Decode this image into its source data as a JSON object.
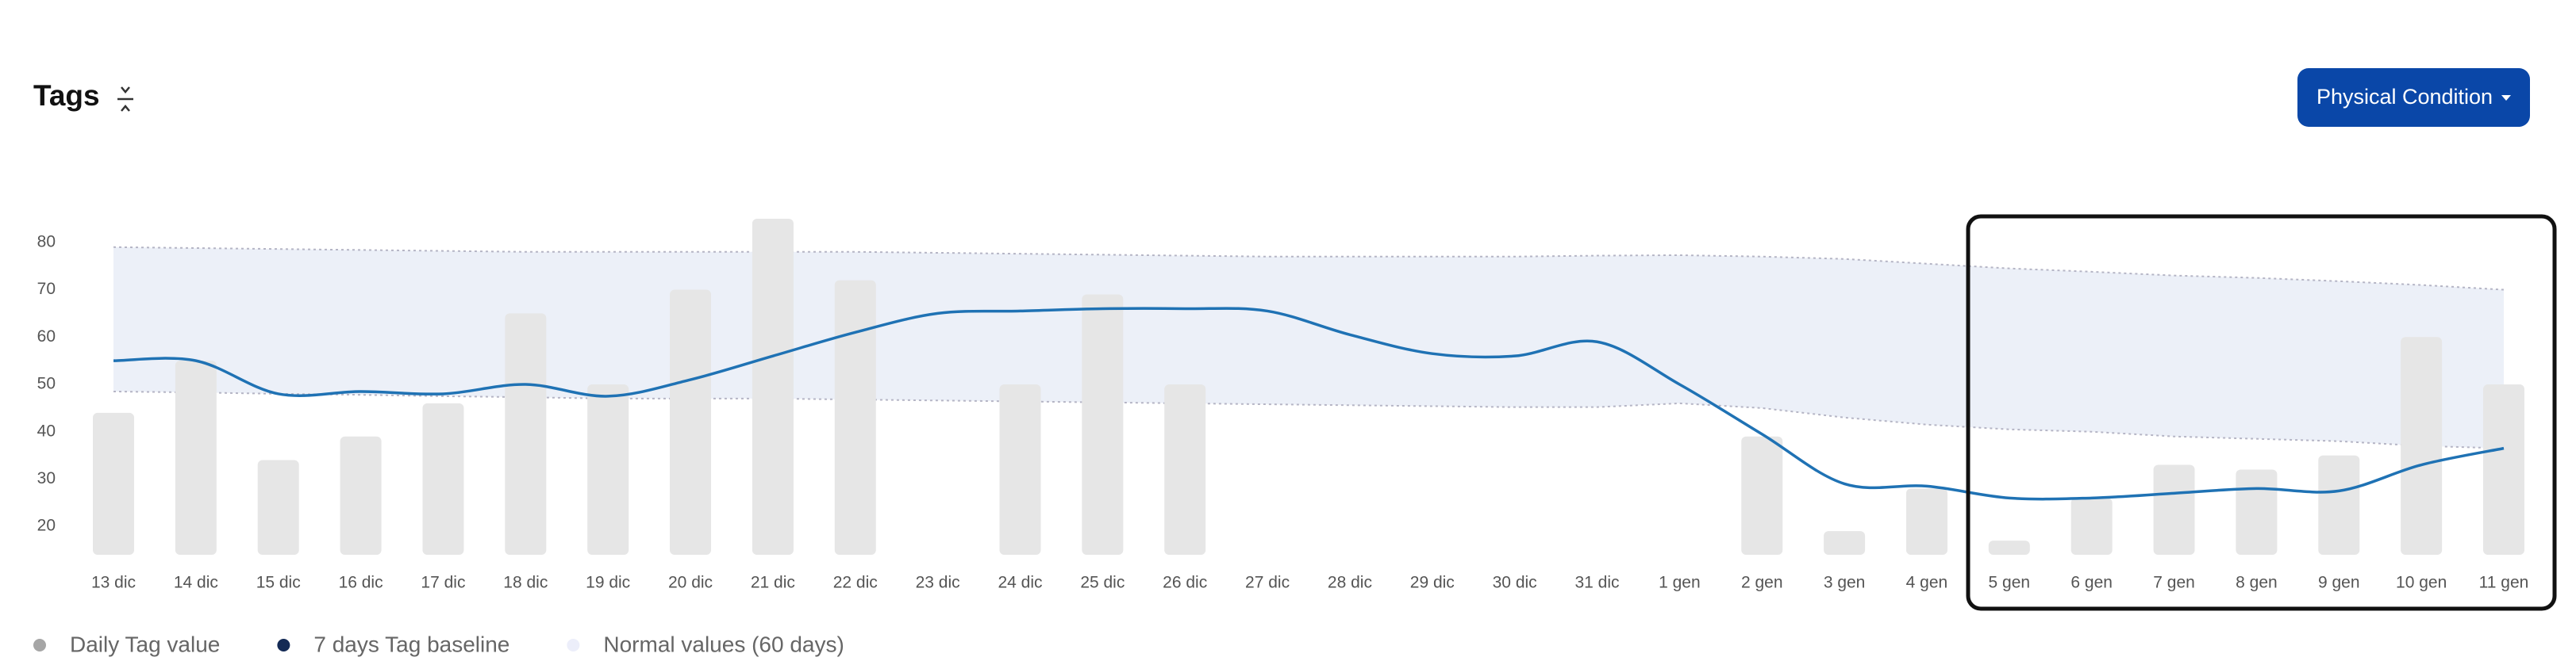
{
  "header": {
    "title": "Tags",
    "button": "Physical Condition"
  },
  "chart_data": {
    "type": "bar",
    "categories": [
      "13 dic",
      "14 dic",
      "15 dic",
      "16 dic",
      "17 dic",
      "18 dic",
      "19 dic",
      "20 dic",
      "21 dic",
      "22 dic",
      "23 dic",
      "24 dic",
      "25 dic",
      "26 dic",
      "27 dic",
      "28 dic",
      "29 dic",
      "30 dic",
      "31 dic",
      "1 gen",
      "2 gen",
      "3 gen",
      "4 gen",
      "5 gen",
      "6 gen",
      "7 gen",
      "8 gen",
      "9 gen",
      "10 gen",
      "11 gen"
    ],
    "series": [
      {
        "name": "Daily Tag value",
        "type": "bar",
        "color": "#e6e6e6",
        "legend_color": "#a6a6a6",
        "values": [
          44,
          55,
          34,
          39,
          46,
          65,
          50,
          70,
          85,
          72,
          null,
          50,
          69,
          50,
          null,
          null,
          null,
          null,
          null,
          null,
          39,
          19,
          28,
          17,
          26,
          33,
          32,
          35,
          60,
          50
        ]
      },
      {
        "name": "7 days Tag baseline",
        "type": "line",
        "color": "#1f72b4",
        "legend_color": "#142a55",
        "values": [
          55,
          55,
          48,
          48.5,
          48,
          50,
          47.5,
          51,
          56,
          61,
          65,
          65.5,
          66,
          66,
          65.5,
          60.5,
          56.5,
          56,
          59,
          50,
          39.5,
          29,
          28.5,
          26,
          26,
          27,
          28,
          27.5,
          33,
          36.5
        ]
      },
      {
        "name": "Normal values (60 days)",
        "type": "band",
        "color": "#e9edf7",
        "legend_color": "#eceefa",
        "lower": [
          48.5,
          48.3,
          48,
          47.8,
          47.5,
          47.3,
          47,
          47,
          47,
          46.8,
          46.6,
          46.4,
          46.2,
          46,
          45.8,
          45.6,
          45.4,
          45.2,
          45.2,
          46,
          45,
          43,
          41.5,
          40.5,
          40,
          39,
          38.5,
          38,
          37,
          36.5
        ],
        "upper": [
          79,
          78.8,
          78.6,
          78.4,
          78.2,
          78,
          78,
          78,
          78,
          78,
          77.8,
          77.6,
          77.4,
          77.2,
          77,
          77,
          77,
          77,
          77.2,
          77.3,
          77,
          76.5,
          75.5,
          74.5,
          73.8,
          73,
          72.5,
          71.8,
          71,
          70
        ]
      }
    ],
    "ylim": [
      14,
      86
    ],
    "yticks": [
      20,
      30,
      40,
      50,
      60,
      70,
      80
    ]
  }
}
